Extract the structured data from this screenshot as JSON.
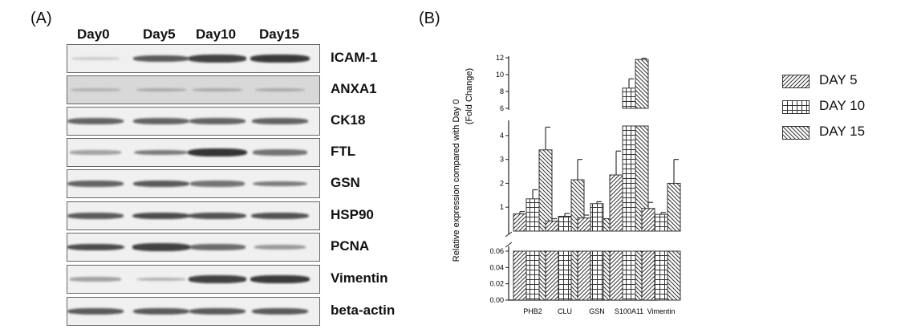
{
  "panel_labels": {
    "a": "(A)",
    "b": "(B)"
  },
  "blot": {
    "lanes": [
      "Day0",
      "Day5",
      "Day10",
      "Day15"
    ],
    "proteins": [
      {
        "name": "ICAM-1",
        "intensity": [
          0.05,
          0.75,
          0.9,
          0.95
        ]
      },
      {
        "name": "ANXA1",
        "intensity": [
          0.1,
          0.15,
          0.15,
          0.15
        ]
      },
      {
        "name": "CK18",
        "intensity": [
          0.7,
          0.7,
          0.7,
          0.7
        ]
      },
      {
        "name": "FTL",
        "intensity": [
          0.3,
          0.55,
          1.0,
          0.6
        ]
      },
      {
        "name": "GSN",
        "intensity": [
          0.7,
          0.75,
          0.6,
          0.55
        ]
      },
      {
        "name": "HSP90",
        "intensity": [
          0.75,
          0.85,
          0.8,
          0.8
        ]
      },
      {
        "name": "PCNA",
        "intensity": [
          0.85,
          0.9,
          0.65,
          0.35
        ]
      },
      {
        "name": "Vimentin",
        "intensity": [
          0.3,
          0.2,
          0.9,
          0.95
        ]
      },
      {
        "name": "beta-actin",
        "intensity": [
          0.75,
          0.75,
          0.75,
          0.75
        ]
      }
    ]
  },
  "chart_data": {
    "type": "bar",
    "ylabel": "Relative expression compared with Day 0 (Fold Change)",
    "categories": [
      "PHB2",
      "CLU",
      "GSN",
      "S100A11",
      "Vimentin"
    ],
    "series": [
      {
        "name": "DAY 5",
        "values": [
          0.72,
          0.42,
          0.55,
          2.35,
          0.95
        ],
        "errors": [
          0.1,
          0.1,
          0.12,
          1.0,
          0.25
        ]
      },
      {
        "name": "DAY 10",
        "values": [
          1.35,
          0.62,
          1.15,
          8.4,
          0.7
        ],
        "errors": [
          0.38,
          0.12,
          0.08,
          1.1,
          0.08
        ]
      },
      {
        "name": "DAY 15",
        "values": [
          3.4,
          2.15,
          0.52,
          11.8,
          2.0
        ],
        "errors": [
          0.95,
          0.85,
          0.03,
          0.15,
          1.0
        ]
      }
    ],
    "y_segments": [
      {
        "range": [
          0,
          0.06
        ],
        "ticks": [
          "0.00",
          "0.02",
          "0.04",
          "0.06"
        ]
      },
      {
        "range": [
          0,
          4.4
        ],
        "ticks": [
          "1",
          "2",
          "3",
          "4"
        ]
      },
      {
        "range": [
          6,
          12
        ],
        "ticks": [
          "6",
          "8",
          "10",
          "12"
        ]
      }
    ],
    "legend_position": "right",
    "colors": {
      "bar_edge": "#333333",
      "bar_fill": "#ffffff"
    }
  }
}
